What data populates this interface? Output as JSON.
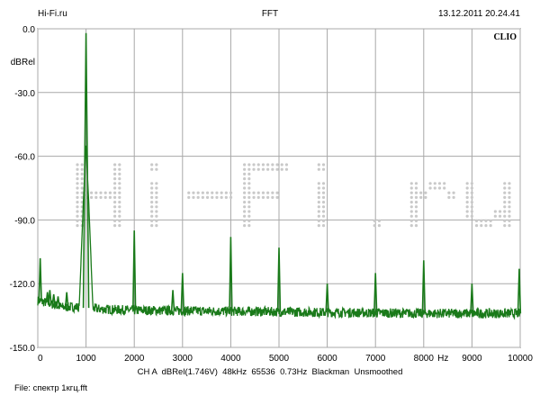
{
  "header": {
    "left": "Hi-Fi.ru",
    "center": "FFT",
    "right": "13.12.2011 20.24.41"
  },
  "watermark": "Hi-Fi.ru",
  "brand_label": "CLIO",
  "y_unit": "dBRel",
  "x_unit": "Hz",
  "status": {
    "channel": "CH A",
    "reference": "dBRel(1.746V)",
    "sample_rate": "48kHz",
    "fft_size": "65536",
    "resolution": "0.73Hz",
    "window": "Blackman",
    "smoothing": "Unsmoothed"
  },
  "file": {
    "label": "File:",
    "name": "спектр 1кгц.fft"
  },
  "colors": {
    "trace": "#1a7a1a",
    "grid": "#a8a8a8",
    "watermark_dots": "#c9c9c9"
  },
  "chart_data": {
    "type": "line",
    "title": "FFT",
    "xlabel": "Hz",
    "ylabel": "dBRel",
    "xlim": [
      0,
      10000
    ],
    "ylim": [
      -150,
      0
    ],
    "x_ticks": [
      0,
      1000,
      2000,
      3000,
      4000,
      5000,
      6000,
      7000,
      8000,
      9000,
      10000
    ],
    "x_tick_labels": [
      "0",
      "1000",
      "2000",
      "3000",
      "4000",
      "5000",
      "6000",
      "7000",
      "8000",
      "9000",
      "10000"
    ],
    "y_ticks": [
      0,
      -30,
      -60,
      -90,
      -120,
      -150
    ],
    "y_tick_labels": [
      "0.0",
      "-30.0",
      "-60.0",
      "-90.0",
      "-120.0",
      "-150.0"
    ],
    "grid": true,
    "noise_floor": {
      "x": [
        0,
        200,
        500,
        800,
        1300,
        2000,
        4000,
        6000,
        8000,
        10000
      ],
      "y": [
        -128,
        -129,
        -131,
        -131,
        -132,
        -132.5,
        -133,
        -133.5,
        -134,
        -134
      ]
    },
    "series": [
      {
        "values_x": [
          50,
          200,
          250,
          330,
          420,
          600,
          1000,
          2000,
          2800,
          3000,
          4000,
          5000,
          6000,
          7000,
          8000,
          9000,
          9980
        ],
        "values_y": [
          -108,
          -124,
          -123,
          -125,
          -126,
          -124,
          -2,
          -95,
          -123,
          -115,
          -98,
          -103,
          -120,
          -115,
          -109,
          -120,
          -113
        ]
      }
    ]
  }
}
